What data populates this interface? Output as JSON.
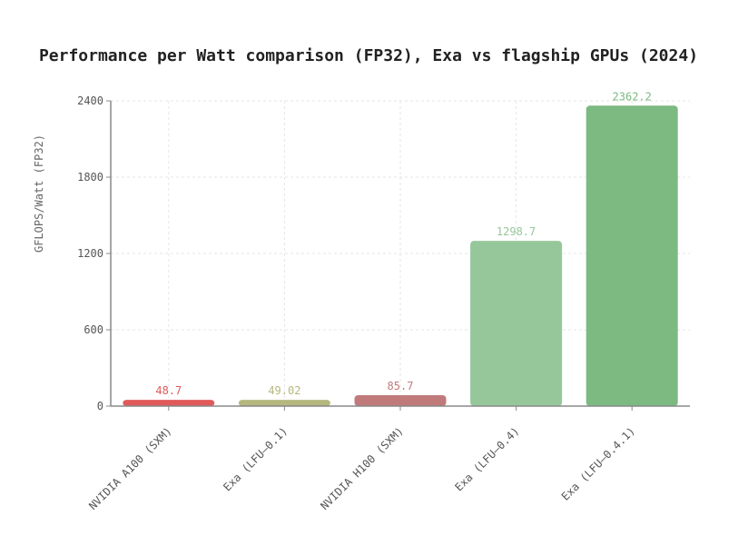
{
  "chart_data": {
    "type": "bar",
    "title": "Performance per Watt comparison (FP32), Exa vs flagship GPUs (2024)",
    "xlabel": "",
    "ylabel": "GFLOPS/Watt (FP32)",
    "categories": [
      "NVIDIA A100 (SXM)",
      "Exa (LFU–0.1)",
      "NVIDIA H100 (SXM)",
      "Exa (LFU–0.4)",
      "Exa (LFU–0.4.1)"
    ],
    "values": [
      48.7,
      49.02,
      85.7,
      1298.7,
      2362.2
    ],
    "value_labels": [
      "48.7",
      "49.02",
      "85.7",
      "1298.7",
      "2362.2"
    ],
    "colors": [
      "#e05a5a",
      "#b5b87e",
      "#c07a7a",
      "#96c79a",
      "#7cba82"
    ],
    "ylim": [
      0,
      2400
    ],
    "yticks": [
      0,
      600,
      1200,
      1800,
      2400
    ],
    "grid": true,
    "legend": "none"
  }
}
